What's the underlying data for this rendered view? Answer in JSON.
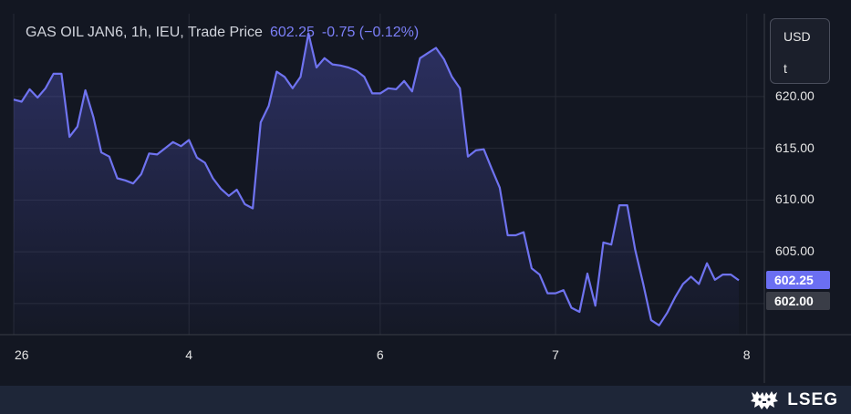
{
  "legend": {
    "title": "GAS OIL JAN6, 1h, IEU, Trade Price",
    "last_price": "602.25",
    "change": "-0.75 (−0.12%)"
  },
  "units": {
    "currency": "USD",
    "uom": "t"
  },
  "price_tags": {
    "last": "602.25",
    "previous": "602.00"
  },
  "brand": {
    "name": "LSEG"
  },
  "colors": {
    "line": "#6f73f0",
    "background": "#131722",
    "last_tag": "#6b6ff2",
    "prev_tag": "#3a3d47"
  },
  "chart_data": {
    "type": "area",
    "title": "GAS OIL JAN6, 1h, IEU, Trade Price",
    "ylim": [
      597,
      628
    ],
    "yticks": [
      600,
      605,
      610,
      615,
      620
    ],
    "ytick_labels": [
      "600.00",
      "605.00",
      "610.00",
      "615.00",
      "620.00"
    ],
    "xtick_labels": [
      "26",
      "4",
      "6",
      "7",
      "8"
    ],
    "xtick_positions": [
      0,
      22,
      46,
      68,
      92
    ],
    "grid": true,
    "series": [
      {
        "values": [
          619.7,
          619.5,
          620.7,
          619.9,
          620.8,
          622.2,
          622.2,
          616.1,
          617.1,
          620.6,
          618.0,
          614.6,
          614.2,
          612.1,
          611.9,
          611.6,
          612.5,
          614.5,
          614.4,
          615.0,
          615.6,
          615.2,
          615.8,
          614.1,
          613.6,
          612.1,
          611.1,
          610.4,
          611.0,
          609.6,
          609.2,
          617.5,
          619.1,
          622.4,
          621.9,
          620.8,
          621.9,
          626.1,
          622.8,
          623.7,
          623.1,
          623.0,
          622.8,
          622.5,
          621.9,
          620.3,
          620.3,
          620.8,
          620.7,
          621.5,
          620.5,
          623.7,
          624.2,
          624.7,
          623.6,
          621.9,
          620.8,
          614.2,
          614.8,
          614.9,
          613.0,
          611.2,
          606.6,
          606.6,
          606.9,
          603.4,
          602.8,
          601.0,
          601.0,
          601.3,
          599.6,
          599.2,
          602.9,
          599.8,
          605.9,
          605.7,
          609.5,
          609.5,
          605.2,
          601.9,
          598.4,
          597.9,
          599.1,
          600.6,
          601.9,
          602.6,
          601.9,
          603.9,
          602.3,
          602.8,
          602.8,
          602.25
        ]
      }
    ]
  }
}
